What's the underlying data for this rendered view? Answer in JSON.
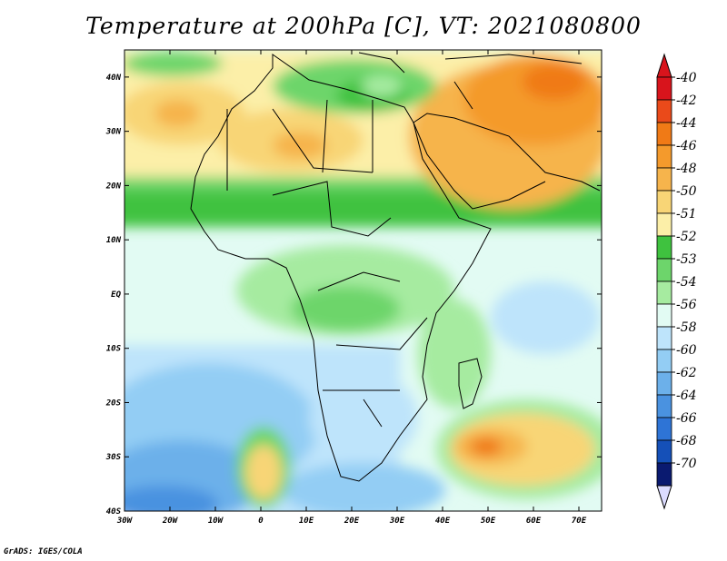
{
  "title": "Temperature at 200hPa [C], VT: 2021080800",
  "footer": "GrADS: IGES/COLA",
  "map": {
    "lon_range": [
      -30,
      75
    ],
    "lat_range": [
      -40,
      45
    ],
    "x_ticks": [
      {
        "lon": -30,
        "label": "30W"
      },
      {
        "lon": -20,
        "label": "20W"
      },
      {
        "lon": -10,
        "label": "10W"
      },
      {
        "lon": 0,
        "label": "0"
      },
      {
        "lon": 10,
        "label": "10E"
      },
      {
        "lon": 20,
        "label": "20E"
      },
      {
        "lon": 30,
        "label": "30E"
      },
      {
        "lon": 40,
        "label": "40E"
      },
      {
        "lon": 50,
        "label": "50E"
      },
      {
        "lon": 60,
        "label": "60E"
      },
      {
        "lon": 70,
        "label": "70E"
      }
    ],
    "y_ticks": [
      {
        "lat": 40,
        "label": "40N"
      },
      {
        "lat": 30,
        "label": "30N"
      },
      {
        "lat": 20,
        "label": "20N"
      },
      {
        "lat": 10,
        "label": "10N"
      },
      {
        "lat": 0,
        "label": "EQ"
      },
      {
        "lat": -10,
        "label": "10S"
      },
      {
        "lat": -20,
        "label": "20S"
      },
      {
        "lat": -30,
        "label": "30S"
      },
      {
        "lat": -40,
        "label": "40S"
      }
    ]
  },
  "colorbar": {
    "levels": [
      "-40",
      "-42",
      "-44",
      "-46",
      "-48",
      "-50",
      "-51",
      "-52",
      "-53",
      "-54",
      "-56",
      "-58",
      "-60",
      "-62",
      "-64",
      "-66",
      "-68",
      "-70"
    ],
    "colors": [
      "#d8141c",
      "#ea4a1a",
      "#f07a16",
      "#f49a2c",
      "#f6b44c",
      "#f8d576",
      "#fcefa8",
      "#3fc23f",
      "#6dd56b",
      "#a6eba0",
      "#e2fbf3",
      "#bee4fb",
      "#93cdf4",
      "#6cb0ea",
      "#4a92e0",
      "#2e74d6",
      "#1550b8",
      "#0a1a70"
    ],
    "over_color": "#d8141c",
    "under_color": "#dcdcff"
  },
  "colors": {
    "ocean": "#e2fbf3",
    "outline": "#000000"
  }
}
